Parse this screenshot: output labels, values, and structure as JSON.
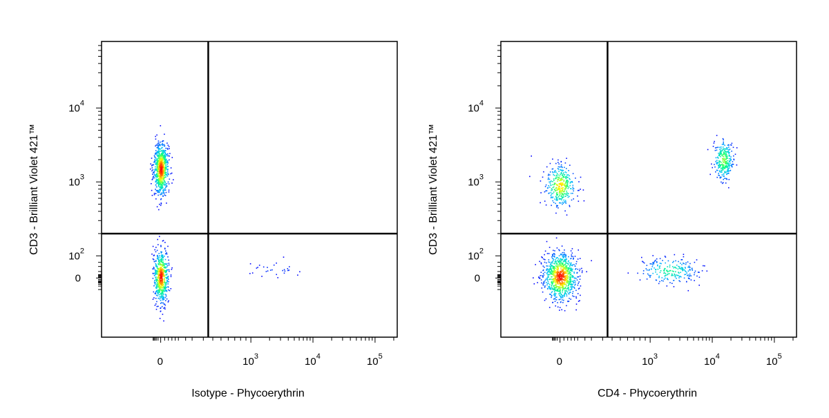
{
  "chart_data": [
    {
      "type": "scatter",
      "plot_style": "flow-cytometry-density-dot-plot",
      "xlabel": "Isotype - Phycoerythrin",
      "ylabel": "CD3 - Brilliant Violet 421™",
      "x_scale": "biexponential",
      "y_scale": "biexponential",
      "x_ticks": [
        {
          "base": "0",
          "exp": ""
        },
        {
          "base": "10",
          "exp": "3"
        },
        {
          "base": "10",
          "exp": "4"
        },
        {
          "base": "10",
          "exp": "5"
        }
      ],
      "y_ticks": [
        {
          "base": "0",
          "exp": ""
        },
        {
          "base": "10",
          "exp": "2"
        },
        {
          "base": "10",
          "exp": "3"
        },
        {
          "base": "10",
          "exp": "4"
        }
      ],
      "gate_x": 350,
      "gate_y": 200,
      "grid": false,
      "legend": "none",
      "density_colormap": [
        "#0000ff",
        "#00c0ff",
        "#00ff80",
        "#ffff00",
        "#ff0000"
      ],
      "populations": [
        {
          "x": 0,
          "y": 1500,
          "x_spread": 0.45,
          "y_spread": 1.0,
          "share": 0.55
        },
        {
          "x": 0,
          "y": 5,
          "x_spread": 0.45,
          "y_spread": 1.0,
          "share": 0.43
        },
        {
          "x": 2500,
          "y": 30,
          "x_spread": 1.6,
          "y_spread": 0.3,
          "share": 0.02
        }
      ]
    },
    {
      "type": "scatter",
      "plot_style": "flow-cytometry-density-dot-plot",
      "xlabel": "CD4 - Phycoerythrin",
      "ylabel": "CD3 - Brilliant Violet 421™",
      "x_scale": "biexponential",
      "y_scale": "biexponential",
      "x_ticks": [
        {
          "base": "0",
          "exp": ""
        },
        {
          "base": "10",
          "exp": "3"
        },
        {
          "base": "10",
          "exp": "4"
        },
        {
          "base": "10",
          "exp": "5"
        }
      ],
      "y_ticks": [
        {
          "base": "0",
          "exp": ""
        },
        {
          "base": "10",
          "exp": "2"
        },
        {
          "base": "10",
          "exp": "3"
        },
        {
          "base": "10",
          "exp": "4"
        }
      ],
      "gate_x": 350,
      "gate_y": 200,
      "grid": false,
      "legend": "none",
      "density_colormap": [
        "#0000ff",
        "#00c0ff",
        "#00ff80",
        "#ffff00",
        "#ff0000"
      ],
      "populations": [
        {
          "x": 0,
          "y": 900,
          "x_spread": 0.9,
          "y_spread": 0.8,
          "share": 0.2
        },
        {
          "x": 15000,
          "y": 2000,
          "x_spread": 0.6,
          "y_spread": 0.8,
          "share": 0.16
        },
        {
          "x": 0,
          "y": 5,
          "x_spread": 1.0,
          "y_spread": 0.9,
          "share": 0.52
        },
        {
          "x": 2000,
          "y": 25,
          "x_spread": 1.8,
          "y_spread": 0.5,
          "share": 0.12
        }
      ]
    }
  ]
}
